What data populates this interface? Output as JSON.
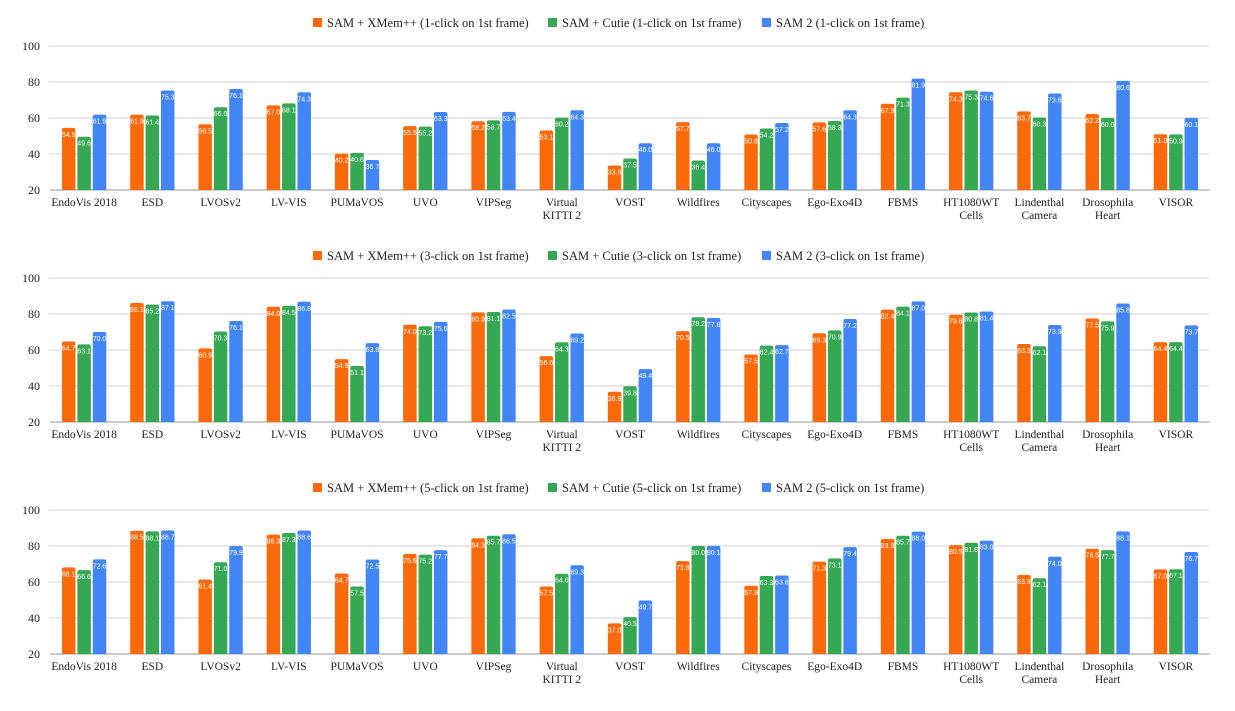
{
  "colors": {
    "sam_xmem": "#fa6a0b",
    "sam_cutie": "#36a853",
    "sam2": "#4286f5",
    "grid": "#d0d0d0",
    "axis": "#999999"
  },
  "chart_data": [
    {
      "type": "bar",
      "title": "",
      "xlabel": "",
      "ylabel": "",
      "ylim": [
        20,
        100
      ],
      "yticks": [
        20,
        40,
        60,
        80,
        100
      ],
      "grid": true,
      "legend_position": "top-center",
      "categories": [
        [
          "EndoVis 2018"
        ],
        [
          "ESD"
        ],
        [
          "LVOSv2"
        ],
        [
          "LV-VIS"
        ],
        [
          "PUMaVOS"
        ],
        [
          "UVO"
        ],
        [
          "VIPSeg"
        ],
        [
          "Virtual",
          "KITTI 2"
        ],
        [
          "VOST"
        ],
        [
          "Wildfires"
        ],
        [
          "Cityscapes"
        ],
        [
          "Ego-Exo4D"
        ],
        [
          "FBMS"
        ],
        [
          "HT1080WT",
          "Cells"
        ],
        [
          "Lindenthal",
          "Camera"
        ],
        [
          "Drosophila",
          "Heart"
        ],
        [
          "VISOR"
        ]
      ],
      "series": [
        {
          "name": "SAM + XMem++ (1-click on 1st frame)",
          "color_key": "sam_xmem",
          "values": [
            54.5,
            61.9,
            56.5,
            67.0,
            40.2,
            55.5,
            58.2,
            53.1,
            33.6,
            57.7,
            50.8,
            57.6,
            67.9,
            74.3,
            63.7,
            62.2,
            51.0
          ]
        },
        {
          "name": "SAM + Cutie (1-click on 1st frame)",
          "color_key": "sam_cutie",
          "values": [
            49.6,
            61.4,
            66.0,
            68.1,
            40.6,
            55.2,
            58.7,
            60.2,
            37.5,
            36.4,
            54.2,
            58.3,
            71.3,
            75.3,
            60.3,
            60.0,
            50.9
          ]
        },
        {
          "name": "SAM 2 (1-click on 1st frame)",
          "color_key": "sam2",
          "values": [
            61.9,
            75.3,
            76.1,
            74.3,
            36.7,
            63.3,
            63.4,
            64.3,
            46.0,
            46.0,
            57.2,
            64.3,
            81.9,
            74.6,
            73.6,
            80.6,
            60.1
          ]
        }
      ]
    },
    {
      "type": "bar",
      "title": "",
      "xlabel": "",
      "ylabel": "",
      "ylim": [
        20,
        100
      ],
      "yticks": [
        20,
        40,
        60,
        80,
        100
      ],
      "grid": true,
      "legend_position": "top-center",
      "categories": [
        [
          "EndoVis 2018"
        ],
        [
          "ESD"
        ],
        [
          "LVOSv2"
        ],
        [
          "LV-VIS"
        ],
        [
          "PUMaVOS"
        ],
        [
          "UVO"
        ],
        [
          "VIPSeg"
        ],
        [
          "Virtual",
          "KITTI 2"
        ],
        [
          "VOST"
        ],
        [
          "Wildfires"
        ],
        [
          "Cityscapes"
        ],
        [
          "Ego-Exo4D"
        ],
        [
          "FBMS"
        ],
        [
          "HT1080WT",
          "Cells"
        ],
        [
          "Lindenthal",
          "Camera"
        ],
        [
          "Drosophila",
          "Heart"
        ],
        [
          "VISOR"
        ]
      ],
      "series": [
        {
          "name": "SAM + XMem++ (3-click on 1st frame)",
          "color_key": "sam_xmem",
          "values": [
            64.7,
            86.1,
            60.9,
            84.0,
            54.9,
            74.0,
            80.9,
            56.6,
            36.8,
            70.5,
            57.5,
            69.3,
            82.4,
            79.6,
            63.3,
            77.5,
            64.4
          ]
        },
        {
          "name": "SAM + Cutie (3-click on 1st frame)",
          "color_key": "sam_cutie",
          "values": [
            63.1,
            85.2,
            70.3,
            84.5,
            51.1,
            73.2,
            81.1,
            64.3,
            39.8,
            78.2,
            62.4,
            70.9,
            84.1,
            80.8,
            62.1,
            75.9,
            64.4
          ]
        },
        {
          "name": "SAM 2 (3-click on 1st frame)",
          "color_key": "sam2",
          "values": [
            70.0,
            87.1,
            76.1,
            86.8,
            63.8,
            75.6,
            82.5,
            69.2,
            49.4,
            77.8,
            62.7,
            77.2,
            87.0,
            81.4,
            73.9,
            85.8,
            73.7
          ]
        }
      ]
    },
    {
      "type": "bar",
      "title": "",
      "xlabel": "",
      "ylabel": "",
      "ylim": [
        20,
        100
      ],
      "yticks": [
        20,
        40,
        60,
        80,
        100
      ],
      "grid": true,
      "legend_position": "top-center",
      "categories": [
        [
          "EndoVis 2018"
        ],
        [
          "ESD"
        ],
        [
          "LVOSv2"
        ],
        [
          "LV-VIS"
        ],
        [
          "PUMaVOS"
        ],
        [
          "UVO"
        ],
        [
          "VIPSeg"
        ],
        [
          "Virtual",
          "KITTI 2"
        ],
        [
          "VOST"
        ],
        [
          "Wildfires"
        ],
        [
          "Cityscapes"
        ],
        [
          "Ego-Exo4D"
        ],
        [
          "FBMS"
        ],
        [
          "HT1080WT",
          "Cells"
        ],
        [
          "Lindenthal",
          "Camera"
        ],
        [
          "Drosophila",
          "Heart"
        ],
        [
          "VISOR"
        ]
      ],
      "series": [
        {
          "name": "SAM + XMem++ (5-click on 1st frame)",
          "color_key": "sam_xmem",
          "values": [
            68.1,
            88.5,
            61.4,
            86.3,
            64.7,
            75.6,
            84.3,
            57.5,
            37.0,
            71.6,
            57.9,
            71.3,
            83.9,
            80.5,
            63.9,
            78.5,
            67.0
          ]
        },
        {
          "name": "SAM + Cutie (5-click on 1st frame)",
          "color_key": "sam_cutie",
          "values": [
            66.6,
            88.1,
            71.0,
            87.3,
            57.5,
            75.2,
            85.7,
            64.6,
            40.5,
            80.0,
            63.3,
            73.1,
            85.7,
            81.8,
            62.1,
            77.7,
            67.1
          ]
        },
        {
          "name": "SAM 2 (5-click on 1st frame)",
          "color_key": "sam2",
          "values": [
            72.6,
            88.7,
            79.9,
            88.6,
            72.5,
            77.7,
            86.5,
            69.3,
            49.7,
            80.1,
            63.6,
            79.4,
            88.0,
            83.0,
            74.0,
            88.1,
            76.7
          ]
        }
      ]
    }
  ]
}
